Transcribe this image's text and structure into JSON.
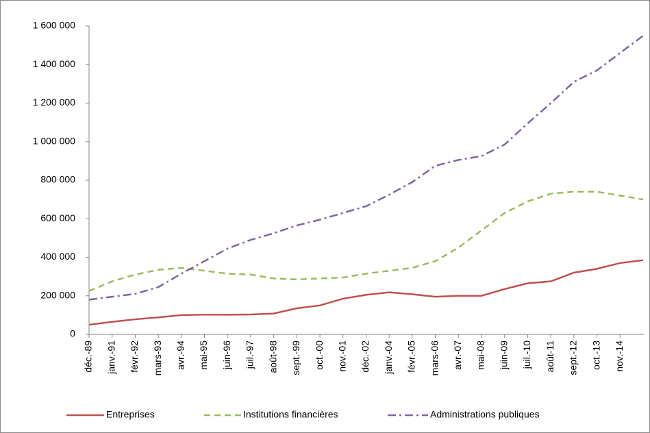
{
  "chart_data": {
    "type": "line",
    "categories": [
      "déc.-89",
      "janv.-91",
      "févr.-92",
      "mars-93",
      "avr.-94",
      "mai-95",
      "juin-96",
      "juil.-97",
      "août-98",
      "sept.-99",
      "oct.-00",
      "nov.-01",
      "déc.-02",
      "janv.-04",
      "févr.-05",
      "mars-06",
      "avr.-07",
      "mai-08",
      "juin-09",
      "juil.-10",
      "août-11",
      "sept.-12",
      "oct.-13",
      "nov.-14",
      null
    ],
    "series": [
      {
        "name": "Entreprises",
        "color": "#c0504d",
        "style": "solid",
        "values": [
          50000,
          65000,
          78000,
          88000,
          100000,
          102000,
          102000,
          103000,
          108000,
          135000,
          150000,
          185000,
          205000,
          218000,
          208000,
          195000,
          200000,
          200000,
          235000,
          265000,
          275000,
          320000,
          340000,
          370000,
          385000
        ]
      },
      {
        "name": "Institutions financières",
        "color": "#9bbb59",
        "style": "dashed",
        "values": [
          225000,
          275000,
          310000,
          335000,
          345000,
          330000,
          315000,
          310000,
          290000,
          285000,
          290000,
          295000,
          315000,
          330000,
          345000,
          380000,
          450000,
          540000,
          630000,
          690000,
          730000,
          740000,
          740000,
          720000,
          700000
        ]
      },
      {
        "name": "Administrations publiques",
        "color": "#8064a2",
        "style": "dashdot",
        "values": [
          180000,
          195000,
          210000,
          245000,
          315000,
          380000,
          445000,
          490000,
          525000,
          565000,
          595000,
          630000,
          665000,
          725000,
          790000,
          875000,
          905000,
          925000,
          985000,
          1095000,
          1200000,
          1310000,
          1370000,
          1460000,
          1550000
        ]
      }
    ],
    "ylim": [
      0,
      1600000
    ],
    "yticks": [
      0,
      {
        "value": 200000,
        "label": "200 000"
      },
      {
        "value": 400000,
        "label": "400 000"
      },
      {
        "value": 600000,
        "label": "600 000"
      },
      {
        "value": 800000,
        "label": "800 000"
      },
      {
        "value": 1000000,
        "label": "1 000 000"
      },
      {
        "value": 1200000,
        "label": "1 200 000"
      },
      {
        "value": 1400000,
        "label": "1 400 000"
      },
      {
        "value": 1600000,
        "label": "1 600 000"
      }
    ],
    "grid": false,
    "legend": "bottom"
  }
}
